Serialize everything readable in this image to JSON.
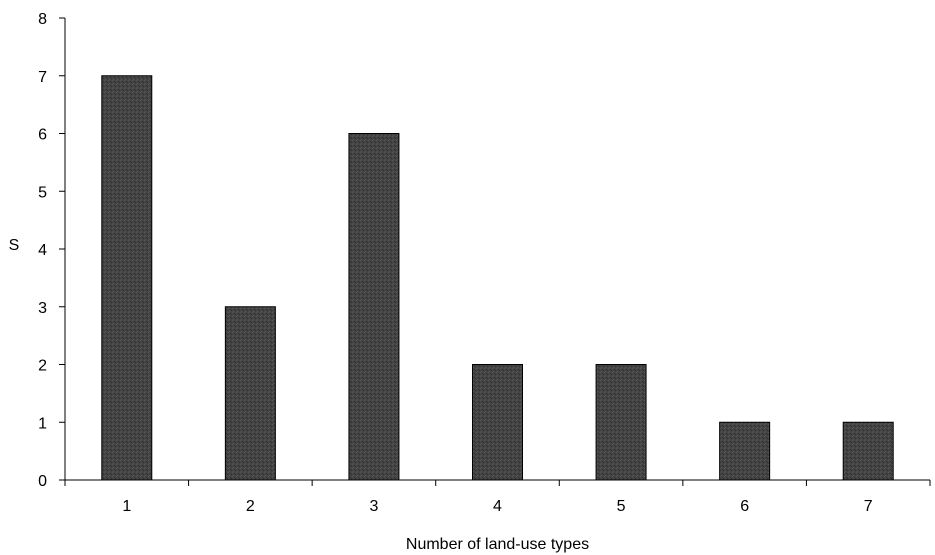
{
  "chart_data": {
    "type": "bar",
    "categories": [
      "1",
      "2",
      "3",
      "4",
      "5",
      "6",
      "7"
    ],
    "values": [
      7,
      3,
      6,
      2,
      2,
      1,
      1
    ],
    "title": "",
    "xlabel": "Number of land-use types",
    "ylabel": "S",
    "ylim": [
      0,
      8
    ],
    "yticks": [
      "0",
      "1",
      "2",
      "3",
      "4",
      "5",
      "6",
      "7",
      "8"
    ],
    "grid": false,
    "legend": "none",
    "bar_color": "#444444",
    "bar_edge_color": "#000000"
  }
}
